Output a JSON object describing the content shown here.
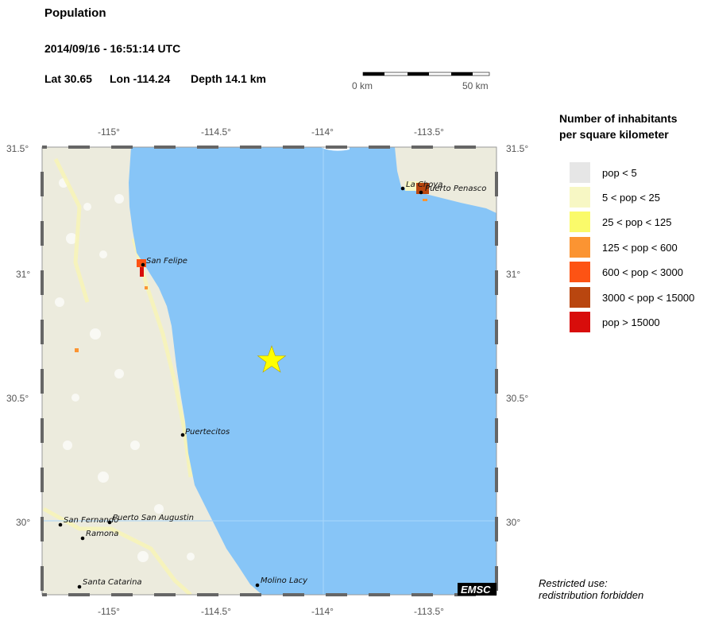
{
  "header": {
    "title": "Population",
    "datetime": "2014/09/16 - 16:51:14 UTC",
    "lat": "Lat 30.65",
    "lon": "Lon -114.24",
    "depth": "Depth  14.1 km"
  },
  "scale_bar": {
    "start_label": "0 km",
    "end_label": "50 km"
  },
  "map": {
    "lon_ticks": [
      "-115°",
      "-114.5°",
      "-114°",
      "-113.5°"
    ],
    "lat_ticks": [
      "31.5°",
      "31°",
      "30.5°",
      "30°"
    ],
    "sea_color": "#87c5f7",
    "land_color": "#ecebdd",
    "epicenter": {
      "lat": 30.65,
      "lon": -114.24,
      "icon": "star-icon",
      "color": "#ffff00"
    },
    "cities": [
      {
        "name": "San Felipe"
      },
      {
        "name": "La Choya"
      },
      {
        "name": "Puerto Penasco"
      },
      {
        "name": "Puertecitos"
      },
      {
        "name": "San Fernando"
      },
      {
        "name": "Puerto San Augustin"
      },
      {
        "name": "Ramona"
      },
      {
        "name": "Santa Catarina"
      },
      {
        "name": "Molino Lacy"
      }
    ],
    "logo": "EMSC"
  },
  "legend": {
    "title_line1": "Number of inhabitants",
    "title_line2": "per square kilometer",
    "items": [
      {
        "label": "pop < 5",
        "color": "#e6e6e6"
      },
      {
        "label": "5 < pop < 25",
        "color": "#f7f7c4"
      },
      {
        "label": "25 < pop < 125",
        "color": "#fafa6a"
      },
      {
        "label": "125 < pop < 600",
        "color": "#fb9432"
      },
      {
        "label": "600 < pop < 3000",
        "color": "#fd5314"
      },
      {
        "label": "3000 < pop < 15000",
        "color": "#b9460f"
      },
      {
        "label": "pop > 15000",
        "color": "#d80d0b"
      }
    ]
  },
  "note": {
    "line1": "Restricted use:",
    "line2": "redistribution forbidden"
  }
}
